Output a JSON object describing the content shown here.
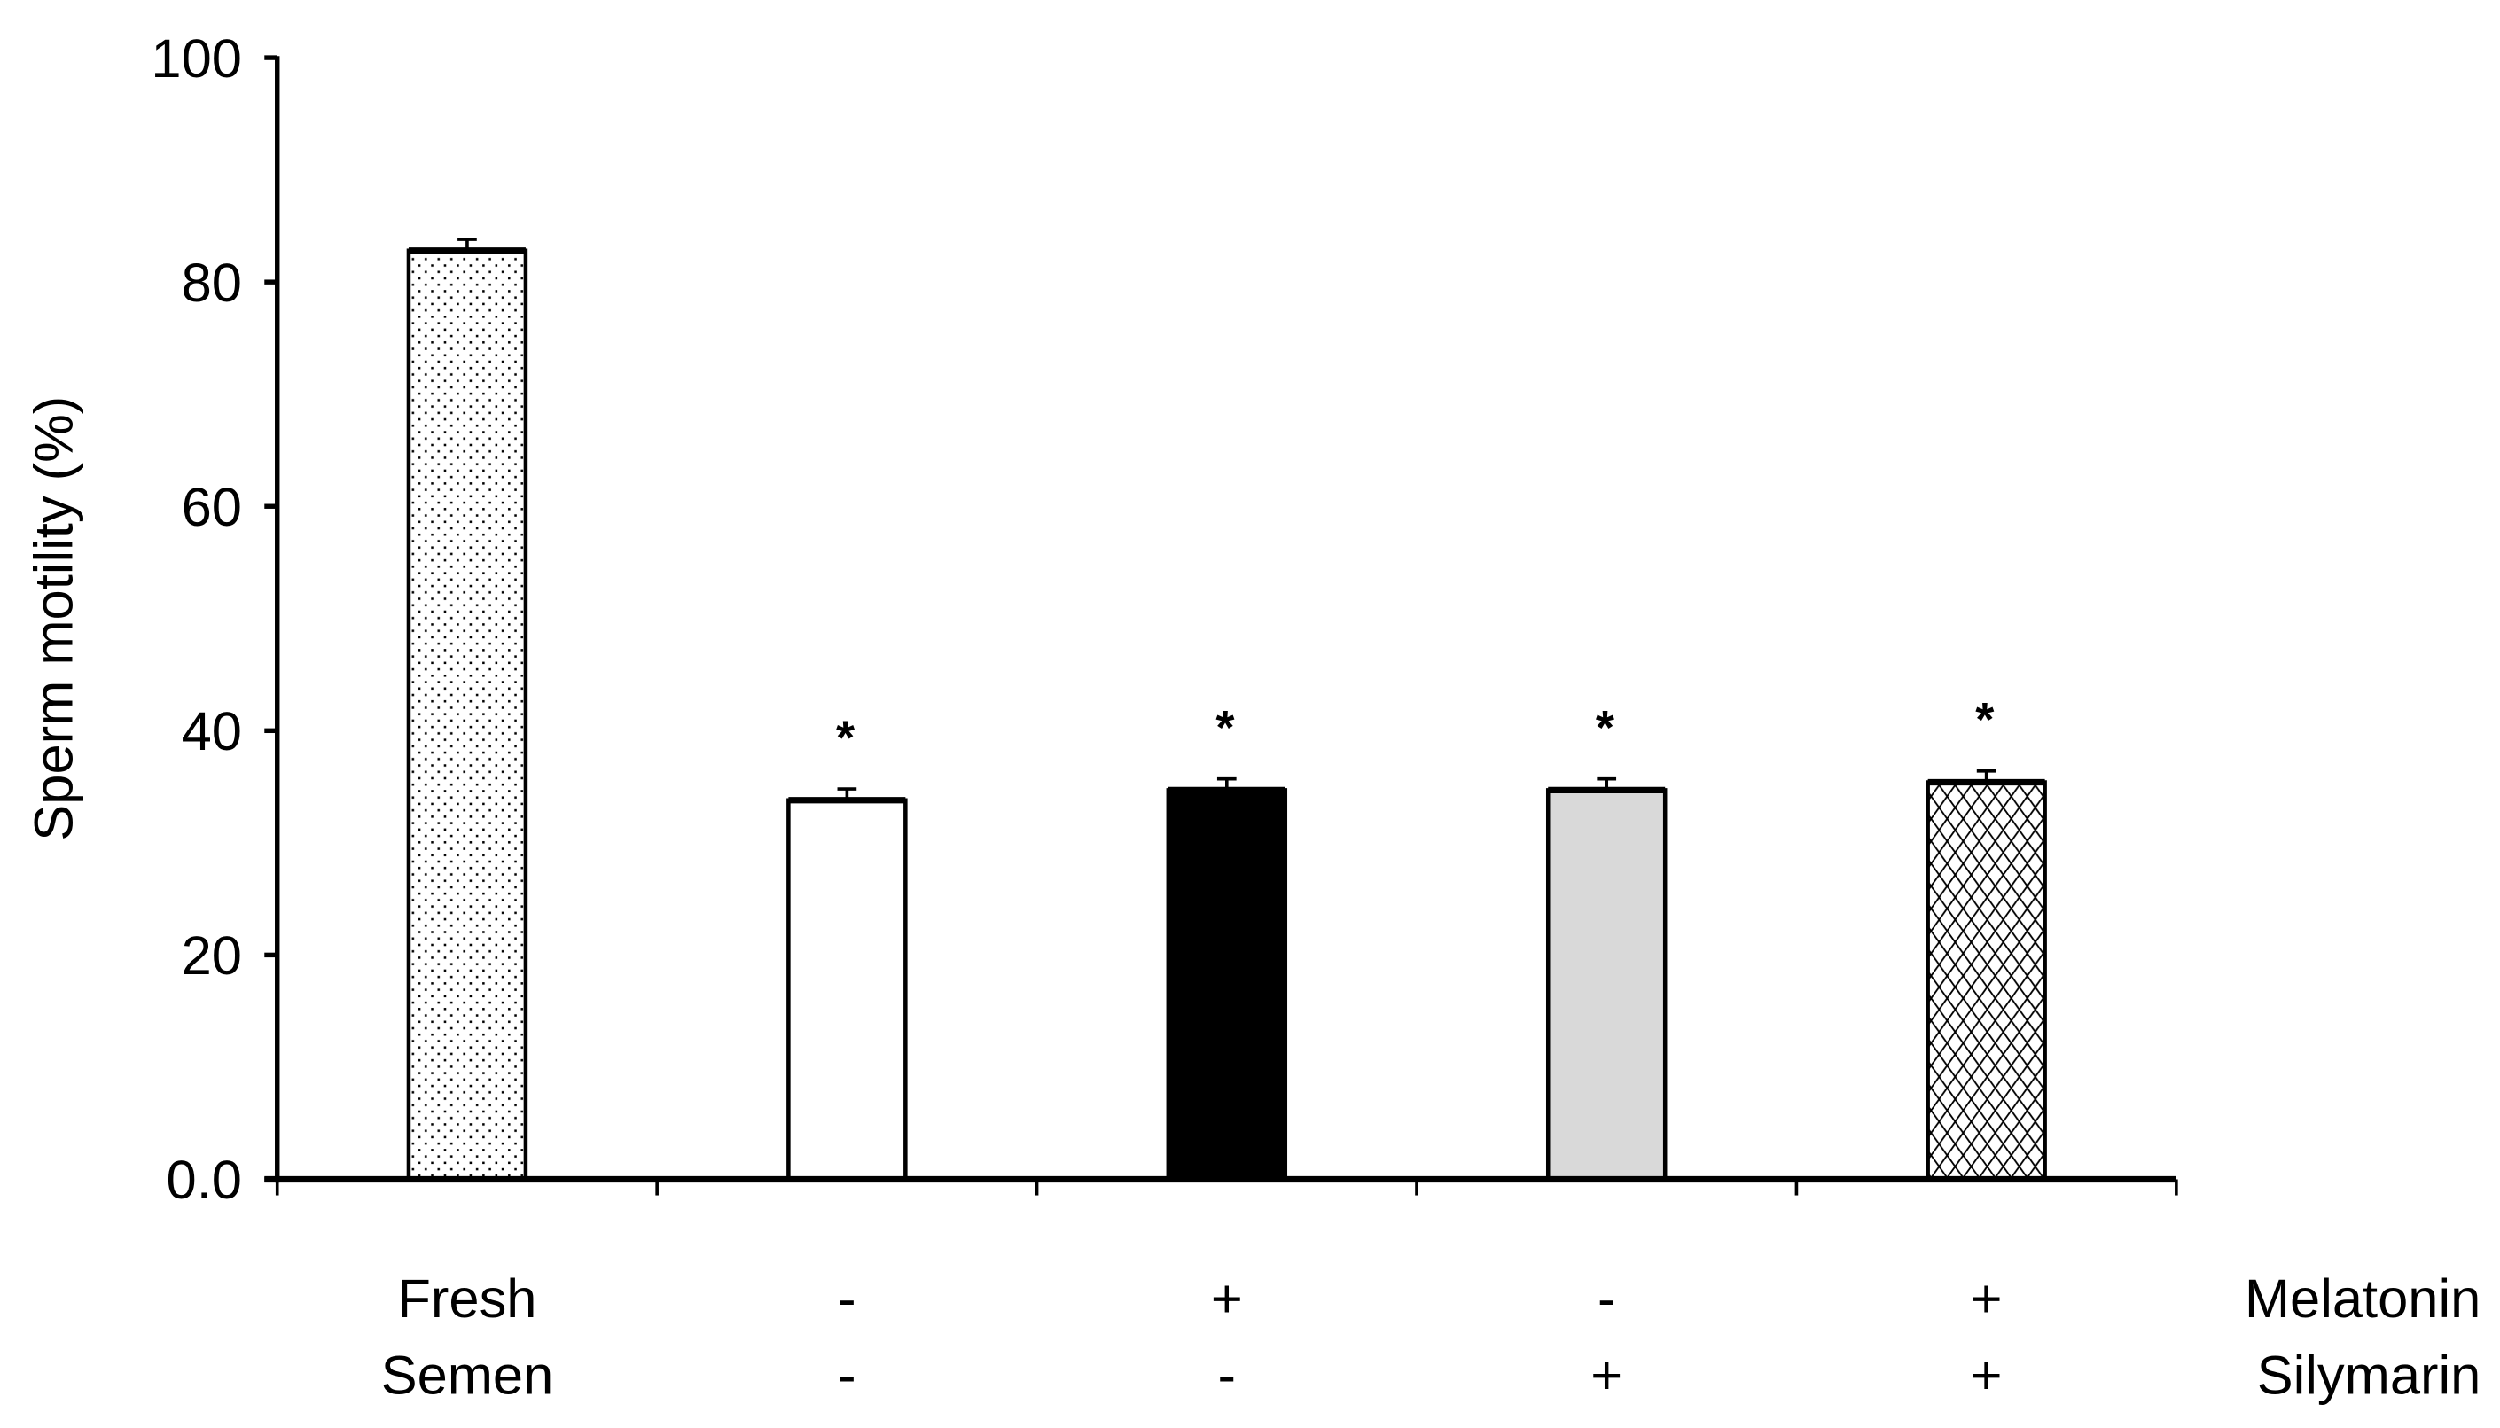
{
  "chart_data": {
    "type": "bar",
    "title": "",
    "xlabel": "",
    "ylabel": "Sperm motility (%)",
    "ylim": [
      0,
      100
    ],
    "yticks": [
      "0.0",
      "20",
      "40",
      "60",
      "80",
      "100"
    ],
    "grid": false,
    "legend": null,
    "categories": [
      "Fresh Semen",
      "Melatonin - / Silymarin -",
      "Melatonin + / Silymarin -",
      "Melatonin - / Silymarin +",
      "Melatonin + / Silymarin +"
    ],
    "values": [
      82.8,
      33.8,
      34.7,
      34.7,
      35.4
    ],
    "errors": [
      1.0,
      1.0,
      1.0,
      1.0,
      1.0
    ],
    "significance": [
      "",
      "*",
      "*",
      "*",
      "*"
    ],
    "bar_styles": [
      {
        "fill": "dotted",
        "color": "#ffffff"
      },
      {
        "fill": "solid",
        "color": "#ffffff"
      },
      {
        "fill": "solid",
        "color": "#000000"
      },
      {
        "fill": "solid",
        "color": "#d9d9d9"
      },
      {
        "fill": "crosshatch",
        "color": "#ffffff"
      }
    ],
    "treatment_table": {
      "rows": [
        {
          "label": "Melatonin",
          "first_col": "Fresh",
          "values": [
            "-",
            "+",
            "-",
            "+"
          ]
        },
        {
          "label": "Silymarin",
          "first_col": "Semen",
          "values": [
            "-",
            "-",
            "+",
            "+"
          ]
        }
      ]
    }
  }
}
